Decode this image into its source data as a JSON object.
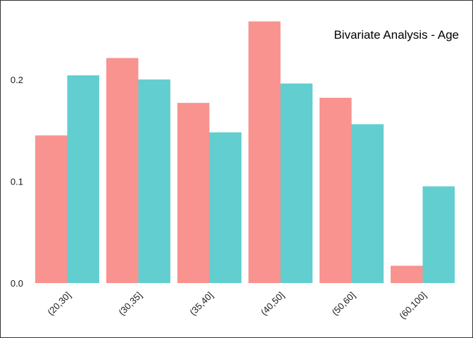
{
  "chart_data": {
    "type": "bar",
    "title": "Bivariate Analysis - Age",
    "xlabel": "",
    "ylabel": "",
    "categories": [
      "(20,30]",
      "(30,35]",
      "(35,40]",
      "(40,50]",
      "(50,60]",
      "(60,100]"
    ],
    "series": [
      {
        "values": [
          0.145,
          0.221,
          0.177,
          0.257,
          0.182,
          0.017
        ]
      },
      {
        "values": [
          0.204,
          0.2,
          0.148,
          0.196,
          0.156,
          0.095
        ]
      }
    ],
    "ylim": [
      0,
      0.27
    ],
    "yticks": [
      {
        "value": 0.0,
        "label": "0.0"
      },
      {
        "value": 0.1,
        "label": "0.1"
      },
      {
        "value": 0.2,
        "label": "0.2"
      }
    ],
    "grid": false,
    "legend": "none",
    "colors": {
      "series": [
        "#f8938f",
        "#62ced0"
      ],
      "frame": "#333333"
    }
  }
}
